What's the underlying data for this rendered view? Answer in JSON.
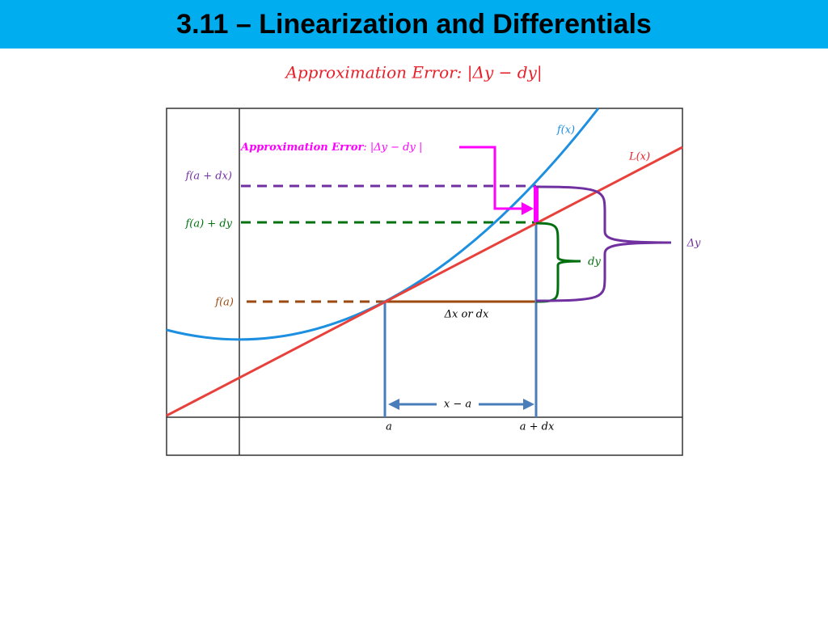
{
  "header": {
    "title": "3.11 – Linearization and Differentials"
  },
  "subtitle": "Approximation Error: |Δy − dy|",
  "diagram": {
    "curve_labels": {
      "f": "f(x)",
      "L": "L(x)"
    },
    "annotation": {
      "label": "Approximation Error",
      "formula": ": |Δy − dy |"
    },
    "y_labels": {
      "f_a_dx": "f(a + dx)",
      "f_a_plus_dy": "f(a) + dy",
      "f_a": "f(a)"
    },
    "braces": {
      "delta_y": "Δy",
      "dy": "dy"
    },
    "dx_label": "Δx or dx",
    "span_label": "x − a",
    "x_labels": {
      "a": "a",
      "a_dx": "a + dx"
    }
  }
}
